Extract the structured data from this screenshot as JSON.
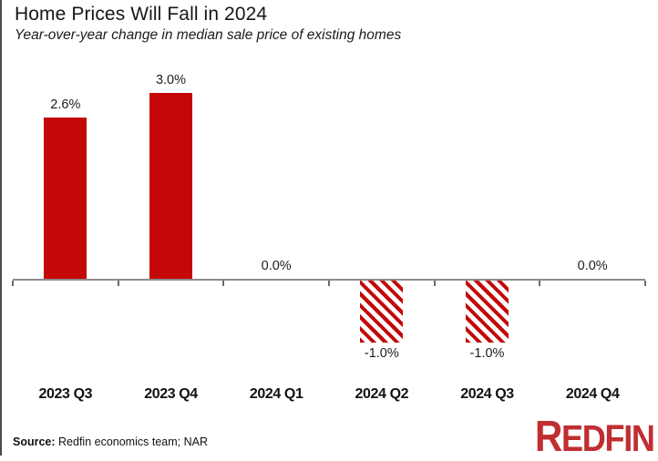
{
  "header": {
    "title": "Home Prices Will Fall in 2024",
    "subtitle": "Year-over-year change in median sale price of existing homes"
  },
  "chart_data": {
    "type": "bar",
    "title": "Home Prices Will Fall in 2024",
    "subtitle": "Year-over-year change in median sale price of existing homes",
    "categories": [
      "2023 Q3",
      "2023 Q4",
      "2024 Q1",
      "2024 Q2",
      "2024 Q3",
      "2024 Q4"
    ],
    "values": [
      2.6,
      3.0,
      0.0,
      -1.0,
      -1.0,
      0.0
    ],
    "value_labels": [
      "2.6%",
      "3.0%",
      "0.0%",
      "-1.0%",
      "-1.0%",
      "0.0%"
    ],
    "bar_styles": [
      "solid",
      "solid",
      "none",
      "hatched",
      "hatched",
      "none"
    ],
    "xlabel": "",
    "ylabel": "",
    "ylim": [
      -1.5,
      3.5
    ],
    "grid": false,
    "legend": false,
    "bar_color": "#c40808",
    "hatch_background": "#ffffff",
    "axis_color": "#8c8c8c",
    "tick_color": "#6b6b6b"
  },
  "footer": {
    "source_label": "Source:",
    "source_text": " Redfin economics team; NAR",
    "logo_first_letter": "R",
    "logo_rest": "EDFIN",
    "logo_color": "#c02e31"
  }
}
